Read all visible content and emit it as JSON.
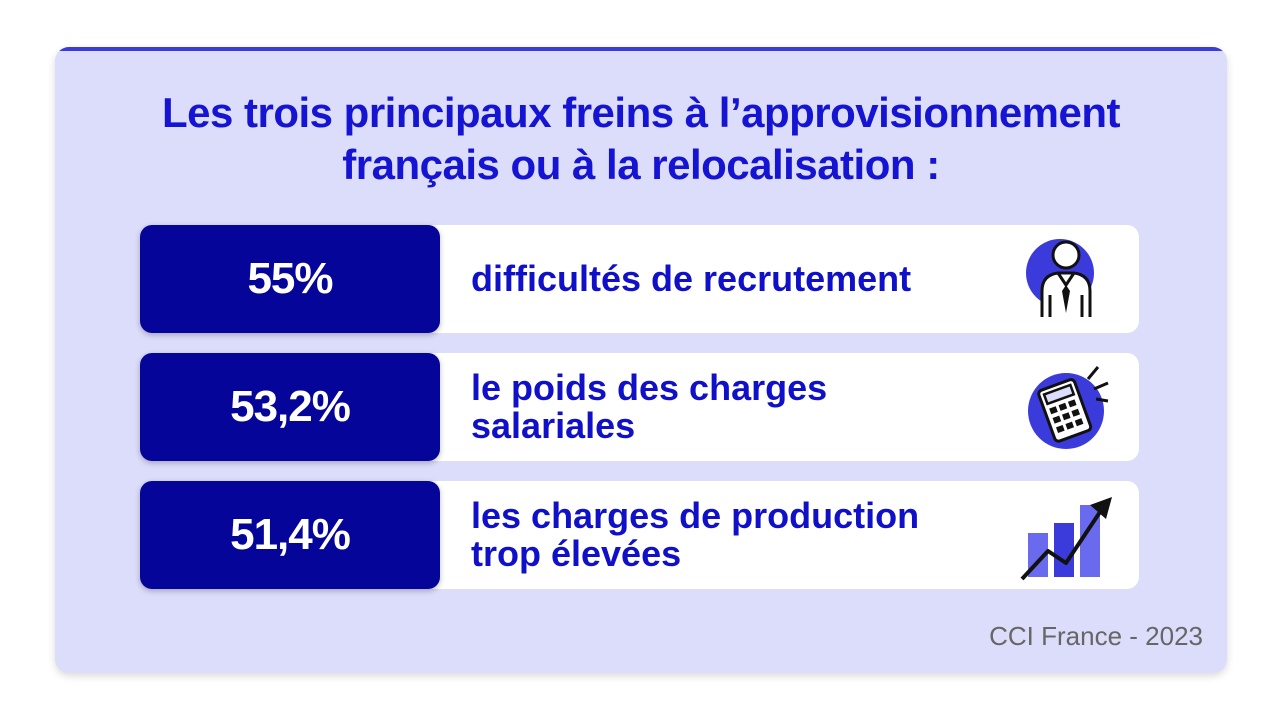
{
  "title_lines": [
    "Les trois principaux freins à l’approvisionnement",
    "français ou à la relocalisation :"
  ],
  "source": "CCI France - 2023",
  "colors": {
    "background": "#dcdcfb",
    "title": "#1414d2",
    "value_box": "#05059a",
    "label": "#1010c8",
    "icon_accent": "#3b3bdc"
  },
  "chart_data": {
    "type": "table",
    "title": "Les trois principaux freins à l’approvisionnement français ou à la relocalisation :",
    "unit": "%",
    "rows": [
      {
        "value": "55%",
        "percent": 55,
        "label_lines": [
          "difficultés de recrutement"
        ],
        "icon": "businessman-icon"
      },
      {
        "value": "53,2%",
        "percent": 53.2,
        "label_lines": [
          "le poids des charges",
          "salariales"
        ],
        "icon": "calculator-icon"
      },
      {
        "value": "51,4%",
        "percent": 51.4,
        "label_lines": [
          "les charges de production",
          "trop élevées"
        ],
        "icon": "growth-chart-icon"
      }
    ],
    "source": "CCI France - 2023"
  }
}
